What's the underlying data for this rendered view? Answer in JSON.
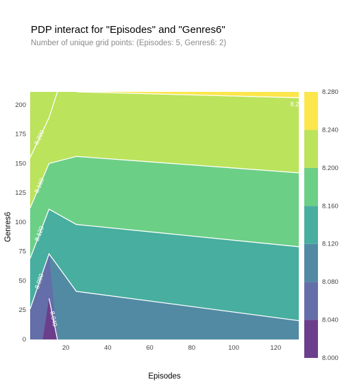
{
  "title": "PDP interact for \"Episodes\" and \"Genres6\"",
  "subtitle": "Number of unique grid points: (Episodes: 5, Genres6: 2)",
  "chart_data": {
    "type": "contour",
    "xlabel": "Episodes",
    "ylabel": "Genres6",
    "xlim": [
      3,
      131
    ],
    "ylim": [
      0,
      211
    ],
    "x_ticks": [
      20,
      40,
      60,
      80,
      100,
      120
    ],
    "y_ticks": [
      0,
      25,
      50,
      75,
      100,
      125,
      150,
      175,
      200
    ],
    "grid": true,
    "levels": [
      8.0,
      8.04,
      8.08,
      8.12,
      8.16,
      8.2,
      8.24,
      8.28
    ],
    "level_colors": [
      "#6c3f8c",
      "#646ea8",
      "#528aa4",
      "#48ae9f",
      "#6ccf86",
      "#bbe35c",
      "#fde64c"
    ],
    "colorbar_ticks": [
      "8.000",
      "8.040",
      "8.080",
      "8.120",
      "8.160",
      "8.200",
      "8.240",
      "8.280"
    ],
    "contour_lines": [
      {
        "level": "8.040",
        "points": [
          [
            12,
            35
          ],
          [
            16,
            0
          ]
        ]
      },
      {
        "level": "8.080",
        "points": [
          [
            3,
            26
          ],
          [
            12,
            73
          ],
          [
            25,
            41
          ],
          [
            131,
            16
          ]
        ]
      },
      {
        "level": "8.120",
        "points": [
          [
            3,
            69
          ],
          [
            12,
            111
          ],
          [
            25,
            98
          ],
          [
            131,
            79
          ]
        ]
      },
      {
        "level": "8.160",
        "points": [
          [
            3,
            112
          ],
          [
            12,
            150
          ],
          [
            25,
            156
          ],
          [
            131,
            142
          ]
        ]
      },
      {
        "level": "8.200",
        "points": [
          [
            3,
            155
          ],
          [
            12,
            189
          ],
          [
            16,
            211
          ]
        ]
      },
      {
        "level": "8.2",
        "points": [
          [
            25,
            211
          ],
          [
            131,
            206
          ]
        ]
      }
    ],
    "grid_points": {
      "Episodes": 5,
      "Genres6": 2
    }
  }
}
